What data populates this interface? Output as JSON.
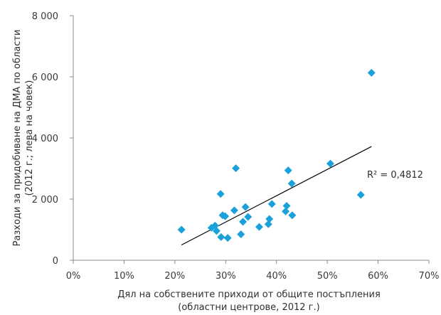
{
  "chart_data": {
    "type": "scatter",
    "xlabel": [
      "Дял на собствените приходи от общите постъпления",
      "(областни центрове, 2012 г.)"
    ],
    "ylabel": [
      "Разходи за придобиване на ДМА по области",
      "(2012 г.; лева на човек)"
    ],
    "xlim": [
      0,
      0.7
    ],
    "ylim": [
      0,
      8000
    ],
    "x_ticks": [
      0,
      0.1,
      0.2,
      0.3,
      0.4,
      0.5,
      0.6,
      0.7
    ],
    "x_tick_labels": [
      "0%",
      "10%",
      "20%",
      "30%",
      "40%",
      "50%",
      "60%",
      "70%"
    ],
    "y_ticks": [
      0,
      2000,
      4000,
      6000,
      8000
    ],
    "y_tick_labels": [
      "0",
      "2 000",
      "4 000",
      "6 000",
      "8 000"
    ],
    "grid": false,
    "marker_color": "#1aa1dc",
    "trend_color": "#000000",
    "annotation": "R² = 0,4812",
    "points": [
      {
        "x": 0.213,
        "y": 1000
      },
      {
        "x": 0.272,
        "y": 1060
      },
      {
        "x": 0.279,
        "y": 1130
      },
      {
        "x": 0.282,
        "y": 960
      },
      {
        "x": 0.29,
        "y": 2170
      },
      {
        "x": 0.291,
        "y": 760
      },
      {
        "x": 0.294,
        "y": 1470
      },
      {
        "x": 0.299,
        "y": 1440
      },
      {
        "x": 0.304,
        "y": 730
      },
      {
        "x": 0.317,
        "y": 1630
      },
      {
        "x": 0.32,
        "y": 3010
      },
      {
        "x": 0.33,
        "y": 850
      },
      {
        "x": 0.334,
        "y": 1260
      },
      {
        "x": 0.339,
        "y": 1740
      },
      {
        "x": 0.344,
        "y": 1420
      },
      {
        "x": 0.366,
        "y": 1090
      },
      {
        "x": 0.384,
        "y": 1180
      },
      {
        "x": 0.386,
        "y": 1350
      },
      {
        "x": 0.391,
        "y": 1840
      },
      {
        "x": 0.418,
        "y": 1600
      },
      {
        "x": 0.42,
        "y": 1780
      },
      {
        "x": 0.423,
        "y": 2940
      },
      {
        "x": 0.43,
        "y": 2510
      },
      {
        "x": 0.431,
        "y": 1470
      },
      {
        "x": 0.506,
        "y": 3160
      },
      {
        "x": 0.566,
        "y": 2140
      },
      {
        "x": 0.587,
        "y": 6130
      }
    ],
    "trendline": {
      "x": [
        0.213,
        0.587
      ],
      "y": [
        500,
        3720
      ]
    }
  }
}
